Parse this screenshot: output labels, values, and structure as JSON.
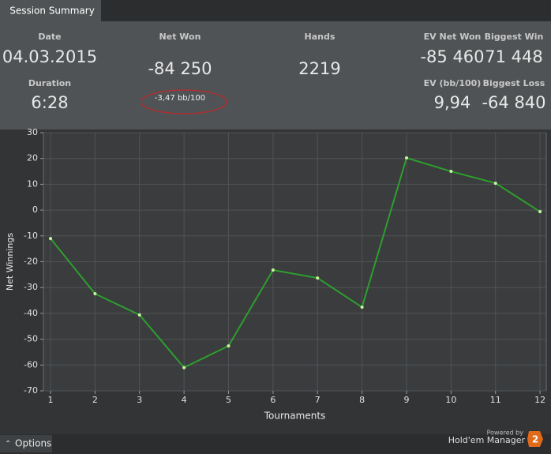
{
  "tab": "Session Summary",
  "summary": [
    {
      "label": "Date",
      "value": "04.03.2015"
    },
    {
      "label": "Duration",
      "value": "6:28"
    },
    {
      "label": "Net Won",
      "value": "-84 250"
    },
    {
      "label": "Hands",
      "value": "2219"
    },
    {
      "label": "EV Net Won",
      "value": "-85 460"
    },
    {
      "label": "Biggest Win",
      "value": "71 448"
    },
    {
      "label": "EV (bb/100)",
      "value": "9,94"
    },
    {
      "label": "Biggest Loss",
      "value": "-64 840"
    }
  ],
  "note": "-3,47 bb/100",
  "options": "Options",
  "footer": {
    "powered": "Powered by",
    "brand": "Hold'em Manager",
    "logo": "2"
  },
  "chart_data": {
    "type": "line",
    "x_label": "Tournaments",
    "y_label": "Net Winnings",
    "x": [
      1,
      2,
      3,
      4,
      5,
      6,
      7,
      8,
      9,
      10,
      11,
      12
    ],
    "values": [
      -11,
      -32.4,
      -40.6,
      -61,
      -52.6,
      -23.2,
      -26.3,
      -37.6,
      20.2,
      15,
      10.4,
      -0.6
    ],
    "color": "#2e9e2e",
    "xlim": [
      0.84,
      12.14
    ],
    "ylim": [
      -70,
      30
    ],
    "xticks": [
      1,
      2,
      3,
      4,
      5,
      6,
      7,
      8,
      9,
      10,
      11,
      12
    ],
    "yticks": [
      -70,
      -60,
      -50,
      -40,
      -30,
      -20,
      -10,
      0,
      10,
      20,
      30
    ],
    "grid": true
  }
}
